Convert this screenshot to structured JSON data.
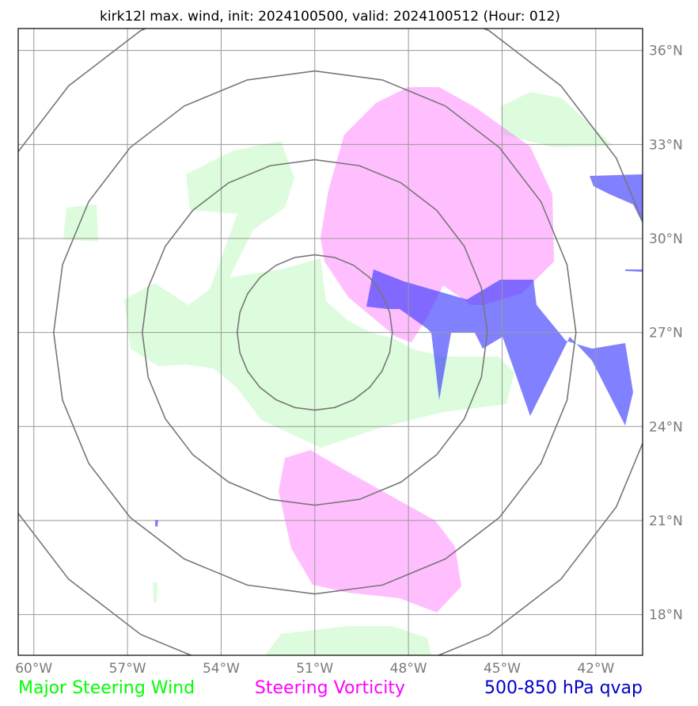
{
  "title": "kirk12l max. wind, init: 2024100500, valid: 2024100512 (Hour: 012)",
  "map": {
    "lon_range": [
      -60.5,
      -40.5
    ],
    "lat_range": [
      16.7,
      36.7
    ],
    "lon_ticks": [
      -60,
      -57,
      -54,
      -51,
      -48,
      -45,
      -42
    ],
    "lat_ticks": [
      18,
      21,
      24,
      27,
      30,
      33,
      36
    ],
    "lon_tick_labels": [
      "60°W",
      "57°W",
      "54°W",
      "51°W",
      "48°W",
      "45°W",
      "42°W"
    ],
    "lat_tick_labels": [
      "18°N",
      "21°N",
      "24°N",
      "27°N",
      "30°N",
      "33°N",
      "36°N"
    ],
    "grid": true,
    "range_rings_center": [
      -51.0,
      27.0
    ],
    "range_rings_count": 4,
    "colors": {
      "steering_wind": "#00ff00",
      "steering_vorticity": "#ff00ff",
      "qvap": "#0000ff",
      "grid": "#999999",
      "rings": "#777777"
    }
  },
  "legend": {
    "steering_wind": "Major Steering Wind",
    "steering_vorticity": "Steering Vorticity",
    "qvap": "500-850 hPa qvap"
  }
}
